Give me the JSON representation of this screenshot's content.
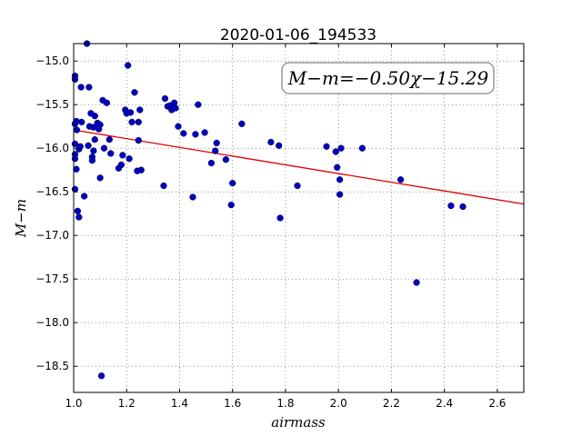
{
  "chart_data": {
    "type": "scatter",
    "title": "2020-01-06_194533",
    "xlabel": "airmass",
    "ylabel": "M−m",
    "xlim": [
      1.0,
      2.7
    ],
    "ylim": [
      -18.8,
      -14.8
    ],
    "y_inverted": true,
    "grid": true,
    "xticks": [
      "1.0",
      "1.2",
      "1.4",
      "1.6",
      "1.8",
      "2.0",
      "2.2",
      "2.4",
      "2.6"
    ],
    "yticks": [
      "−15.0",
      "−15.5",
      "−16.0",
      "−16.5",
      "−17.0",
      "−17.5",
      "−18.0",
      "−18.5"
    ],
    "annotation": "M−m=−0.50χ−15.29",
    "annotation_position": "top-right",
    "fit_line": {
      "slope": -0.5,
      "intercept": -15.29,
      "color": "#dd0000"
    },
    "point_color": "#0000bb",
    "points": [
      [
        1.005,
        -15.17
      ],
      [
        1.005,
        -15.21
      ],
      [
        1.005,
        -15.72
      ],
      [
        1.005,
        -15.95
      ],
      [
        1.005,
        -16.07
      ],
      [
        1.005,
        -16.12
      ],
      [
        1.005,
        -16.47
      ],
      [
        1.01,
        -15.69
      ],
      [
        1.01,
        -16.24
      ],
      [
        1.012,
        -15.79
      ],
      [
        1.015,
        -16.72
      ],
      [
        1.02,
        -16.01
      ],
      [
        1.02,
        -16.79
      ],
      [
        1.025,
        -15.98
      ],
      [
        1.028,
        -15.3
      ],
      [
        1.03,
        -15.7
      ],
      [
        1.04,
        -16.55
      ],
      [
        1.05,
        -14.8
      ],
      [
        1.055,
        -15.97
      ],
      [
        1.058,
        -15.3
      ],
      [
        1.06,
        -15.75
      ],
      [
        1.065,
        -15.6
      ],
      [
        1.07,
        -16.1
      ],
      [
        1.07,
        -16.14
      ],
      [
        1.075,
        -16.03
      ],
      [
        1.075,
        -15.76
      ],
      [
        1.08,
        -15.63
      ],
      [
        1.08,
        -15.9
      ],
      [
        1.09,
        -15.71
      ],
      [
        1.095,
        -15.78
      ],
      [
        1.1,
        -15.73
      ],
      [
        1.1,
        -16.34
      ],
      [
        1.105,
        -18.61
      ],
      [
        1.11,
        -15.45
      ],
      [
        1.115,
        -16.0
      ],
      [
        1.125,
        -15.48
      ],
      [
        1.135,
        -15.9
      ],
      [
        1.14,
        -16.06
      ],
      [
        1.17,
        -16.23
      ],
      [
        1.18,
        -16.19
      ],
      [
        1.185,
        -16.08
      ],
      [
        1.195,
        -15.56
      ],
      [
        1.2,
        -15.6
      ],
      [
        1.205,
        -15.05
      ],
      [
        1.21,
        -16.12
      ],
      [
        1.215,
        -15.59
      ],
      [
        1.22,
        -15.7
      ],
      [
        1.23,
        -15.36
      ],
      [
        1.24,
        -16.26
      ],
      [
        1.245,
        -15.91
      ],
      [
        1.245,
        -15.7
      ],
      [
        1.25,
        -15.56
      ],
      [
        1.255,
        -16.25
      ],
      [
        1.34,
        -16.43
      ],
      [
        1.345,
        -15.43
      ],
      [
        1.355,
        -15.52
      ],
      [
        1.365,
        -15.51
      ],
      [
        1.37,
        -15.56
      ],
      [
        1.375,
        -15.53
      ],
      [
        1.38,
        -15.48
      ],
      [
        1.385,
        -15.54
      ],
      [
        1.395,
        -15.75
      ],
      [
        1.415,
        -15.83
      ],
      [
        1.45,
        -16.56
      ],
      [
        1.46,
        -15.84
      ],
      [
        1.47,
        -15.5
      ],
      [
        1.495,
        -15.82
      ],
      [
        1.52,
        -16.17
      ],
      [
        1.535,
        -16.03
      ],
      [
        1.54,
        -15.94
      ],
      [
        1.575,
        -16.13
      ],
      [
        1.595,
        -16.65
      ],
      [
        1.6,
        -16.4
      ],
      [
        1.635,
        -15.72
      ],
      [
        1.745,
        -15.93
      ],
      [
        1.775,
        -15.97
      ],
      [
        1.78,
        -16.8
      ],
      [
        1.845,
        -16.43
      ],
      [
        1.955,
        -15.98
      ],
      [
        1.99,
        -16.04
      ],
      [
        1.995,
        -16.22
      ],
      [
        2.005,
        -16.36
      ],
      [
        2.005,
        -16.53
      ],
      [
        2.01,
        -16.0
      ],
      [
        2.09,
        -16.0
      ],
      [
        2.235,
        -16.36
      ],
      [
        2.295,
        -17.54
      ],
      [
        2.425,
        -16.66
      ],
      [
        2.47,
        -16.67
      ]
    ]
  }
}
